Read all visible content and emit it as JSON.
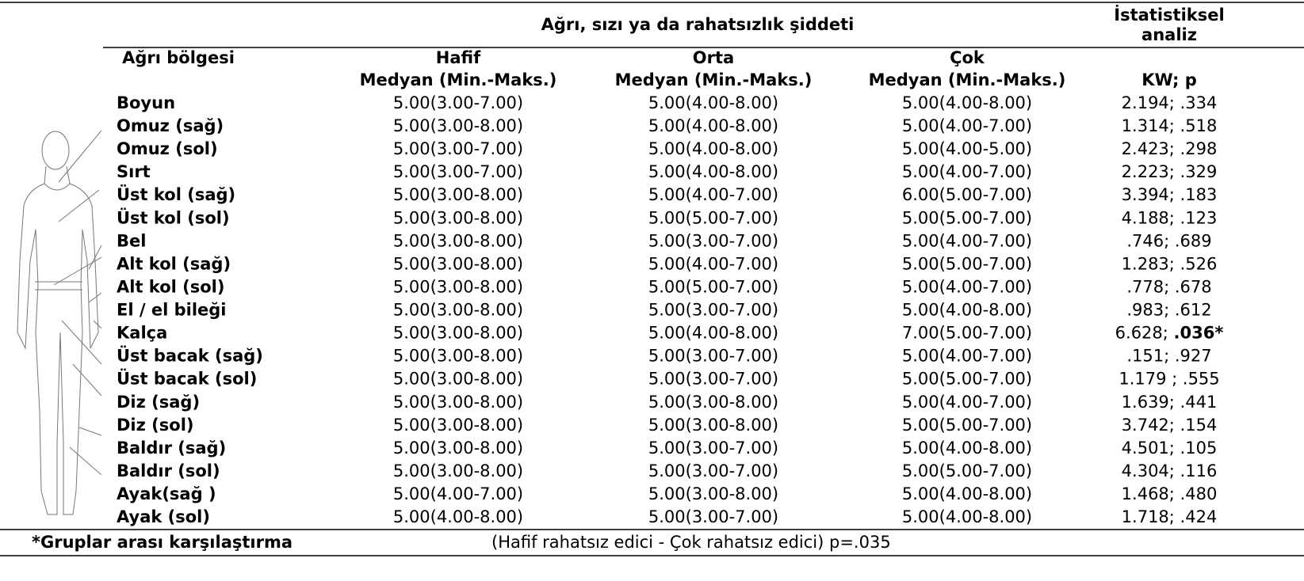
{
  "header": {
    "title": "Ağrı, sızı ya da rahatsızlık şiddeti",
    "stat_title": [
      "İstatistiksel",
      "analiz"
    ],
    "columns": [
      "Ağrı bölgesi",
      "Hafif",
      "Orta",
      "Çok"
    ],
    "subheaders": [
      "Medyan (Min.-Maks.)",
      "Medyan (Min.-Maks.)",
      "Medyan (Min.-Maks.)",
      "KW; p"
    ]
  },
  "table": {
    "rows": [
      [
        "Boyun",
        "5.00(3.00-7.00)",
        "5.00(4.00-8.00)",
        "5.00(4.00-8.00)",
        "2.194; .334"
      ],
      [
        "Omuz (sağ)",
        "5.00(3.00-8.00)",
        "5.00(4.00-8.00)",
        "5.00(4.00-7.00)",
        "1.314; .518"
      ],
      [
        "Omuz (sol)",
        "5.00(3.00-7.00)",
        "5.00(4.00-8.00)",
        "5.00(4.00-5.00)",
        "2.423; .298"
      ],
      [
        "Sırt",
        "5.00(3.00-7.00)",
        "5.00(4.00-8.00)",
        "5.00(4.00-7.00)",
        "2.223; .329"
      ],
      [
        "Üst kol (sağ)",
        "5.00(3.00-8.00)",
        "5.00(4.00-7.00)",
        "6.00(5.00-7.00)",
        "3.394; .183"
      ],
      [
        "Üst kol (sol)",
        "5.00(3.00-8.00)",
        "5.00(5.00-7.00)",
        "5.00(5.00-7.00)",
        "4.188; .123"
      ],
      [
        "Bel",
        "5.00(3.00-8.00)",
        "5.00(3.00-7.00)",
        "5.00(4.00-7.00)",
        ".746; .689"
      ],
      [
        "Alt kol (sağ)",
        "5.00(3.00-8.00)",
        "5.00(4.00-7.00)",
        "5.00(5.00-7.00)",
        "1.283; .526"
      ],
      [
        "Alt kol (sol)",
        "5.00(3.00-8.00)",
        "5.00(5.00-7.00)",
        "5.00(4.00-7.00)",
        ".778; .678"
      ],
      [
        "El / el bileği",
        "5.00(3.00-8.00)",
        "5.00(3.00-7.00)",
        "5.00(4.00-8.00)",
        ".983; .612"
      ],
      [
        "Kalça",
        "5.00(3.00-8.00)",
        "5.00(4.00-8.00)",
        "7.00(5.00-7.00)",
        [
          "6.628; ",
          ".036*"
        ]
      ],
      [
        "Üst bacak (sağ)",
        "5.00(3.00-8.00)",
        "5.00(3.00-7.00)",
        "5.00(4.00-7.00)",
        ".151; .927"
      ],
      [
        "Üst bacak (sol)",
        "5.00(3.00-8.00)",
        "5.00(3.00-7.00)",
        "5.00(5.00-7.00)",
        "1.179 ; .555"
      ],
      [
        "Diz (sağ)",
        "5.00(3.00-8.00)",
        "5.00(3.00-8.00)",
        "5.00(4.00-7.00)",
        "1.639; .441"
      ],
      [
        "Diz (sol)",
        "5.00(3.00-8.00)",
        "5.00(3.00-8.00)",
        "5.00(5.00-7.00)",
        "3.742; .154"
      ],
      [
        "Baldır (sağ)",
        "5.00(3.00-8.00)",
        "5.00(3.00-7.00)",
        "5.00(4.00-8.00)",
        "4.501; .105"
      ],
      [
        "Baldır (sol)",
        "5.00(3.00-8.00)",
        "5.00(3.00-7.00)",
        "5.00(5.00-7.00)",
        "4.304; .116"
      ],
      [
        "Ayak(sağ )",
        "5.00(4.00-7.00)",
        "5.00(3.00-8.00)",
        "5.00(4.00-8.00)",
        "1.468; .480"
      ],
      [
        "Ayak (sol)",
        "5.00(4.00-8.00)",
        "5.00(3.00-7.00)",
        "5.00(4.00-8.00)",
        "1.718; .424"
      ]
    ]
  },
  "footer": {
    "note": "*Gruplar arası karşılaştırma",
    "text": "(Hafif rahatsız edici - Çok rahatsız edici) p=.035"
  }
}
